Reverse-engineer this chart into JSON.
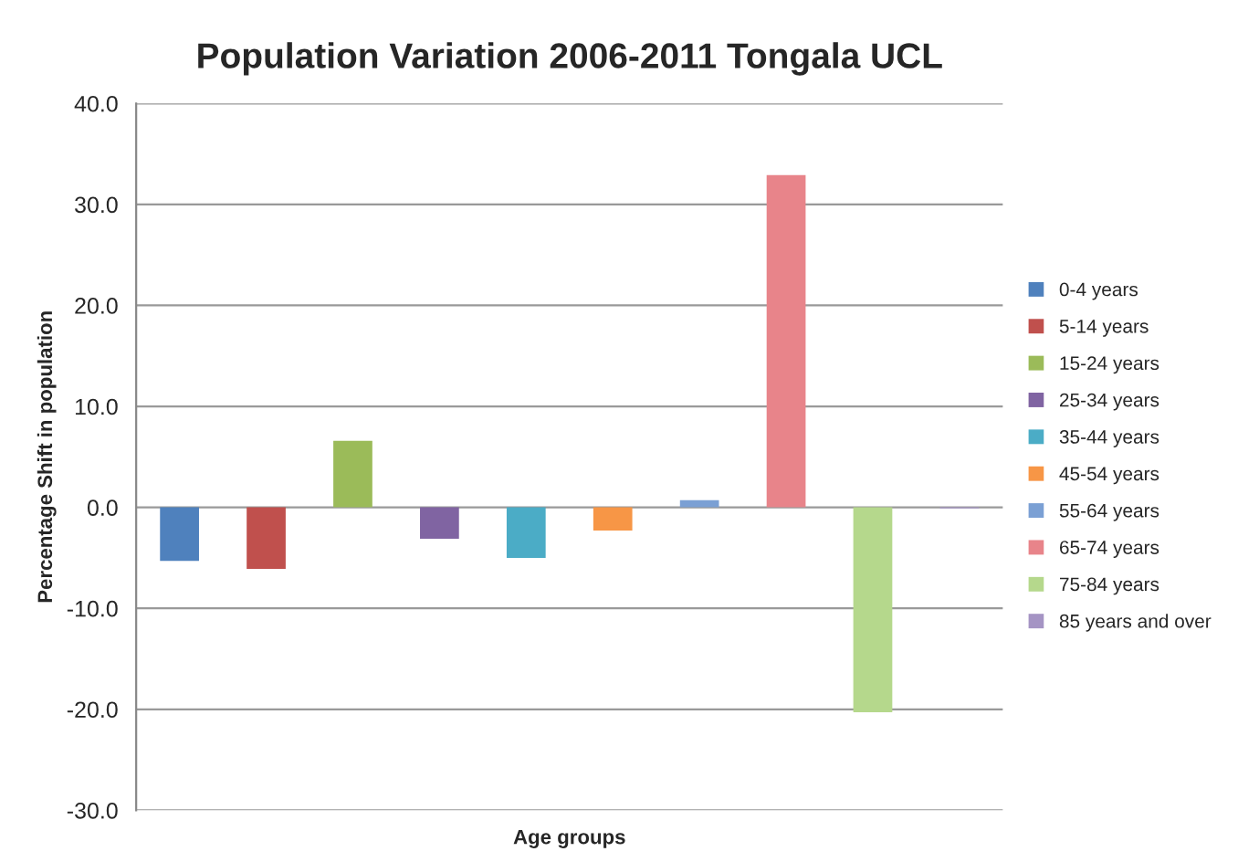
{
  "chart_data": {
    "type": "bar",
    "title": "Population Variation 2006-2011 Tongala UCL",
    "xlabel": "Age groups",
    "ylabel": "Percentage Shift in population",
    "categories": [
      null
    ],
    "series": [
      {
        "name": "0-4 years",
        "color": "#4f81bd",
        "values": [
          -5.3
        ]
      },
      {
        "name": "5-14 years",
        "color": "#c0504d",
        "values": [
          -6.1
        ]
      },
      {
        "name": "15-24 years",
        "color": "#9bbb59",
        "values": [
          6.6
        ]
      },
      {
        "name": "25-34 years",
        "color": "#8064a2",
        "values": [
          -3.1
        ]
      },
      {
        "name": "35-44 years",
        "color": "#4bacc6",
        "values": [
          -5.0
        ]
      },
      {
        "name": "45-54 years",
        "color": "#f79646",
        "values": [
          -2.3
        ]
      },
      {
        "name": "55-64 years",
        "color": "#7ba0d4",
        "values": [
          0.7
        ]
      },
      {
        "name": "65-74 years",
        "color": "#e8848a",
        "values": [
          32.9
        ]
      },
      {
        "name": "75-84 years",
        "color": "#b5d88c",
        "values": [
          -20.3
        ]
      },
      {
        "name": "85 years and over",
        "color": "#a594c4",
        "values": [
          -0.1
        ]
      }
    ],
    "ylim": [
      -30,
      40
    ],
    "yticks": [
      {
        "value": -30,
        "label": "-30.0"
      },
      {
        "value": -20,
        "label": "-20.0"
      },
      {
        "value": -10,
        "label": "-10.0"
      },
      {
        "value": 0,
        "label": "0.0"
      },
      {
        "value": 10,
        "label": "10.0"
      },
      {
        "value": 20,
        "label": "20.0"
      },
      {
        "value": 30,
        "label": "30.0"
      },
      {
        "value": 40,
        "label": "40.0"
      }
    ],
    "grid": "y",
    "legend": "right"
  }
}
